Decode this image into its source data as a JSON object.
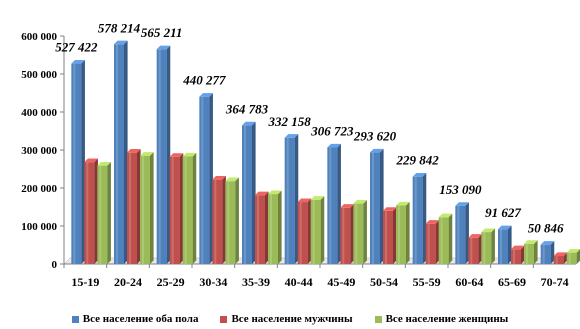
{
  "chart_data": {
    "type": "bar",
    "categories": [
      "15-19",
      "20-24",
      "25-29",
      "30-34",
      "35-39",
      "40-44",
      "45-49",
      "50-54",
      "55-59",
      "60-64",
      "65-69",
      "70-74"
    ],
    "series": [
      {
        "name": "Все население оба пола",
        "color": "#4F81BD",
        "values": [
          527422,
          578214,
          565211,
          440277,
          364783,
          332158,
          306723,
          293620,
          229842,
          153090,
          91627,
          50846
        ],
        "labels": [
          "527 422",
          "578 214",
          "565 211",
          "440 277",
          "364 783",
          "332 158",
          "306 723",
          "293 620",
          "229 842",
          "153 090",
          "91 627",
          "50 846"
        ]
      },
      {
        "name": "Все население мужчины",
        "color": "#C0504D",
        "values": [
          268000,
          293000,
          282000,
          222000,
          181000,
          163000,
          148000,
          140000,
          106000,
          69000,
          39000,
          21000
        ]
      },
      {
        "name": "Все население женщины",
        "color": "#9BBB59",
        "values": [
          259000,
          285000,
          283000,
          218000,
          184000,
          169000,
          159000,
          154000,
          123000,
          84000,
          53000,
          30000
        ]
      }
    ],
    "yticks": [
      "0",
      "100 000",
      "200 000",
      "300 000",
      "400 000",
      "500 000",
      "600 000"
    ],
    "ylim": [
      0,
      600000
    ],
    "grid": false,
    "legend_position": "bottom"
  }
}
